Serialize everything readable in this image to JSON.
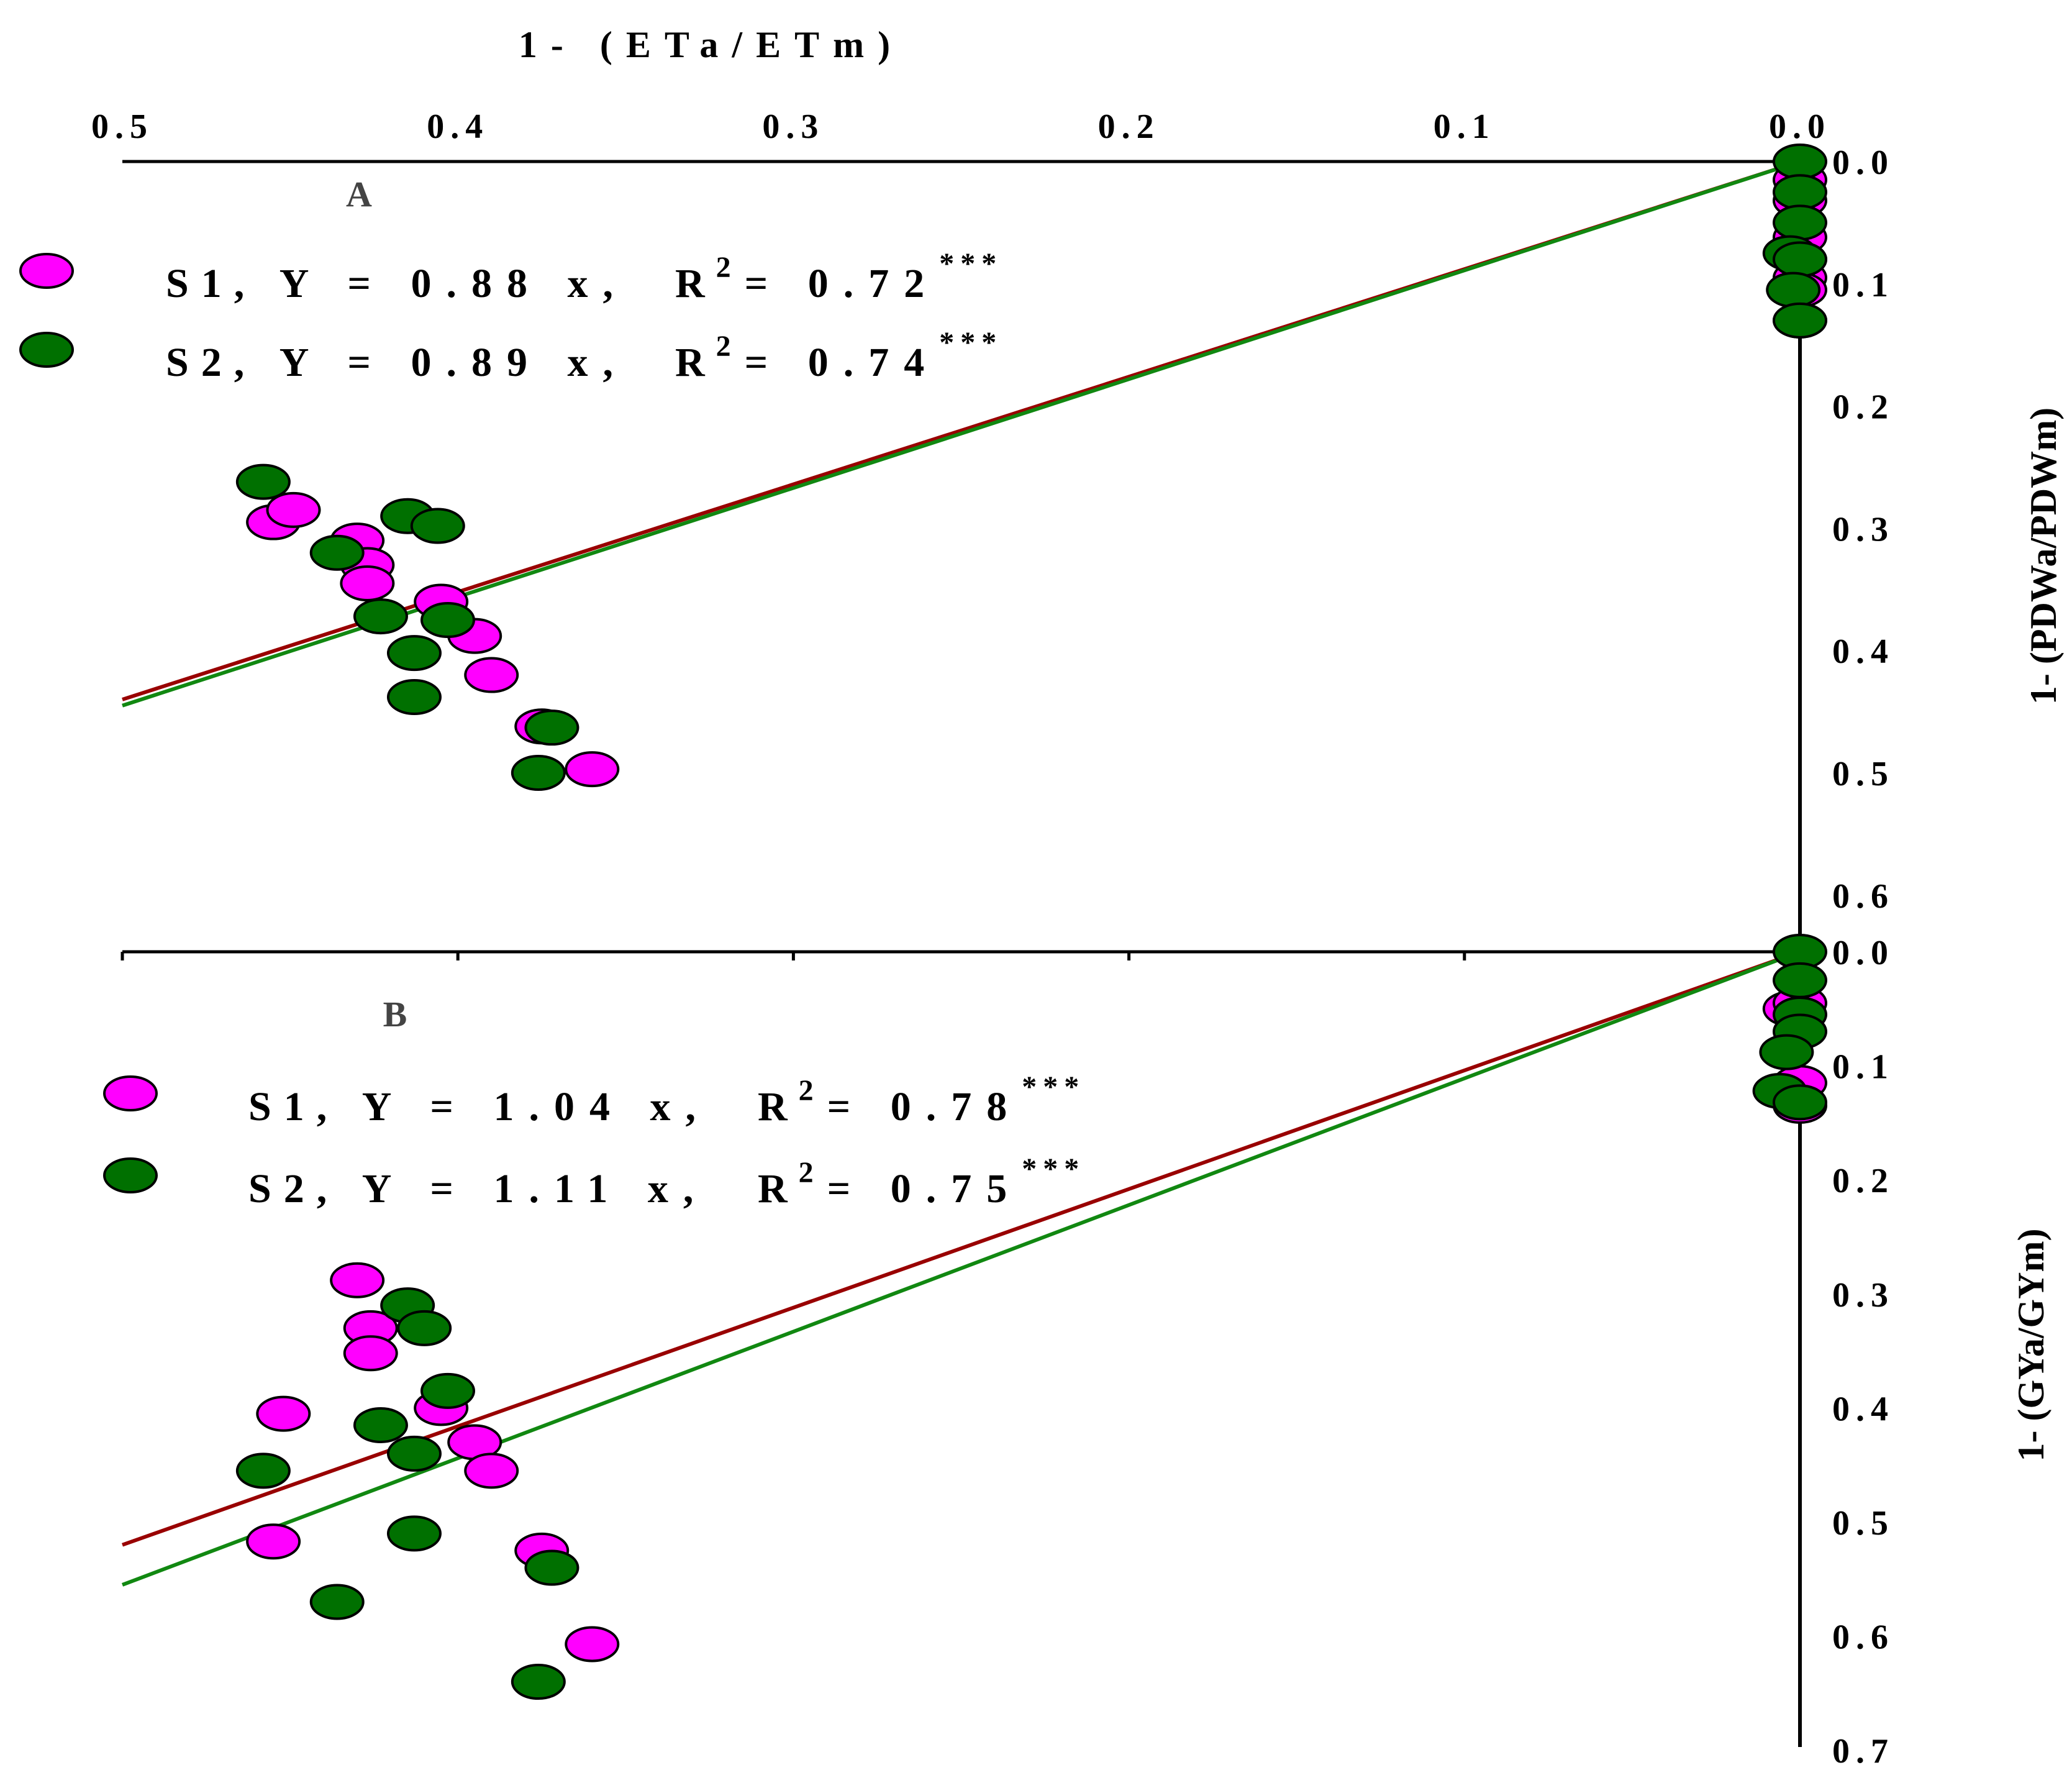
{
  "chart_data": [
    {
      "panel": "A",
      "type": "scatter",
      "xlabel": "1- (ETa/ETm)",
      "ylabel": "1- (PDWa/PDWm)",
      "xlim": [
        0.5,
        0.0
      ],
      "ylim": [
        0.0,
        0.65
      ],
      "x_ticks": [
        "0.5",
        "0.4",
        "0.3",
        "0.2",
        "0.1",
        "0.0"
      ],
      "y_ticks": [
        "0.0",
        "0.1",
        "0.2",
        "0.3",
        "0.4",
        "0.5",
        "0.6"
      ],
      "series": [
        {
          "name": "S1",
          "color": "#ff00ff",
          "equation": "Y = 0.88 x,",
          "r2": "= 0.72",
          "sig": "***",
          "slope": 0.88,
          "points": [
            [
              0.455,
              0.295
            ],
            [
              0.449,
              0.285
            ],
            [
              0.43,
              0.31
            ],
            [
              0.427,
              0.33
            ],
            [
              0.427,
              0.345
            ],
            [
              0.405,
              0.36
            ],
            [
              0.395,
              0.388
            ],
            [
              0.39,
              0.42
            ],
            [
              0.375,
              0.462
            ],
            [
              0.36,
              0.497
            ],
            [
              0.0,
              0.015
            ],
            [
              0.0,
              0.032
            ],
            [
              0.0,
              0.062
            ],
            [
              0.0,
              0.08
            ],
            [
              0.0,
              0.095
            ],
            [
              0.0,
              0.105
            ],
            [
              0.0,
              0.13
            ]
          ]
        },
        {
          "name": "S2",
          "color": "#007000",
          "equation": "Y = 0.89 x,",
          "r2": "= 0.74",
          "sig": "***",
          "slope": 0.89,
          "points": [
            [
              0.458,
              0.262
            ],
            [
              0.436,
              0.32
            ],
            [
              0.415,
              0.29
            ],
            [
              0.406,
              0.298
            ],
            [
              0.423,
              0.372
            ],
            [
              0.403,
              0.375
            ],
            [
              0.413,
              0.402
            ],
            [
              0.413,
              0.438
            ],
            [
              0.372,
              0.463
            ],
            [
              0.376,
              0.5
            ],
            [
              0.0,
              0.0
            ],
            [
              0.0,
              0.025
            ],
            [
              0.0,
              0.05
            ],
            [
              0.003,
              0.075
            ],
            [
              0.0,
              0.08
            ],
            [
              0.002,
              0.105
            ],
            [
              0.0,
              0.13
            ]
          ]
        }
      ]
    },
    {
      "panel": "B",
      "type": "scatter",
      "xlabel": "1- (ETa/ETm)",
      "ylabel": "1- (GYa/GYm)",
      "xlim": [
        0.5,
        0.0
      ],
      "ylim": [
        0.0,
        0.7
      ],
      "x_ticks": [
        "0.5",
        "0.4",
        "0.3",
        "0.2",
        "0.1",
        "0.0"
      ],
      "y_ticks": [
        "0.0",
        "0.1",
        "0.2",
        "0.3",
        "0.4",
        "0.5",
        "0.6",
        "0.7"
      ],
      "series": [
        {
          "name": "S1",
          "color": "#ff00ff",
          "equation": "Y = 1.04 x,",
          "r2": "= 0.78",
          "sig": "***",
          "slope": 1.04,
          "points": [
            [
              0.452,
              0.405
            ],
            [
              0.455,
              0.517
            ],
            [
              0.43,
              0.288
            ],
            [
              0.426,
              0.33
            ],
            [
              0.426,
              0.352
            ],
            [
              0.405,
              0.4
            ],
            [
              0.395,
              0.43
            ],
            [
              0.39,
              0.455
            ],
            [
              0.375,
              0.525
            ],
            [
              0.36,
              0.607
            ],
            [
              0.003,
              0.05
            ],
            [
              0.0,
              0.045
            ],
            [
              0.0,
              0.115
            ],
            [
              0.0,
              0.135
            ]
          ]
        },
        {
          "name": "S2",
          "color": "#007000",
          "equation": "Y = 1.11 x,",
          "r2": "= 0.75",
          "sig": "***",
          "slope": 1.11,
          "points": [
            [
              0.458,
              0.455
            ],
            [
              0.436,
              0.57
            ],
            [
              0.415,
              0.31
            ],
            [
              0.41,
              0.33
            ],
            [
              0.423,
              0.415
            ],
            [
              0.413,
              0.44
            ],
            [
              0.403,
              0.385
            ],
            [
              0.413,
              0.51
            ],
            [
              0.372,
              0.54
            ],
            [
              0.376,
              0.64
            ],
            [
              0.0,
              0.0
            ],
            [
              0.0,
              0.025
            ],
            [
              0.0,
              0.055
            ],
            [
              0.0,
              0.07
            ],
            [
              0.004,
              0.088
            ],
            [
              0.006,
              0.122
            ],
            [
              0.0,
              0.132
            ]
          ]
        }
      ]
    }
  ],
  "top_axis_title": "1- (ETa/ETm)",
  "superscript_2": "2",
  "r_label": "R"
}
